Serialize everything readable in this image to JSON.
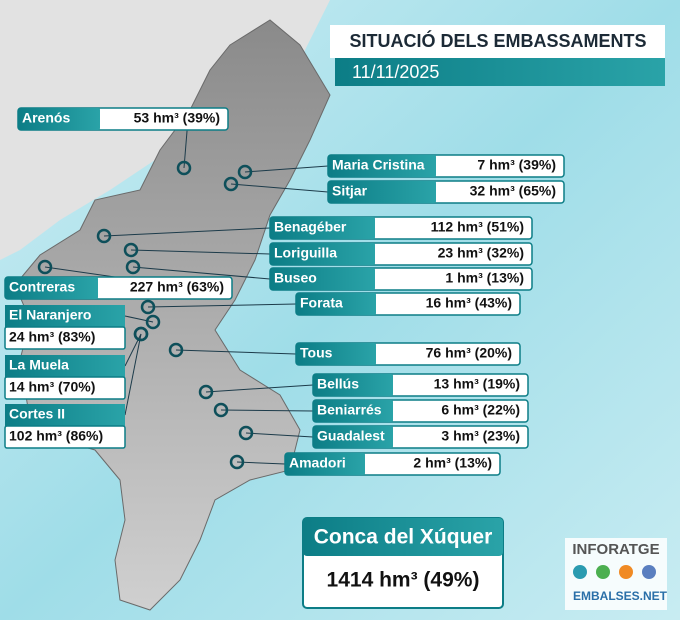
{
  "header": {
    "title": "SITUACIÓ DELS EMBASSAMENTS",
    "date": "11/11/2025"
  },
  "reservoirs": [
    {
      "name": "Arenós",
      "value": "53 hm³ (39%)"
    },
    {
      "name": "Maria Cristina",
      "value": "7 hm³ (39%)"
    },
    {
      "name": "Sitjar",
      "value": "32 hm³ (65%)"
    },
    {
      "name": "Benagéber",
      "value": "112 hm³ (51%)"
    },
    {
      "name": "Loriguilla",
      "value": "23 hm³ (32%)"
    },
    {
      "name": "Buseo",
      "value": "1 hm³ (13%)"
    },
    {
      "name": "Contreras",
      "value": "227 hm³ (63%)"
    },
    {
      "name": "Forata",
      "value": "16 hm³ (43%)"
    },
    {
      "name": "El Naranjero",
      "value": "24 hm³ (83%)"
    },
    {
      "name": "La Muela",
      "value": "14 hm³ (70%)"
    },
    {
      "name": "Cortes II",
      "value": "102 hm³ (86%)"
    },
    {
      "name": "Tous",
      "value": "76 hm³ (20%)"
    },
    {
      "name": "Bellús",
      "value": "13 hm³ (19%)"
    },
    {
      "name": "Beniarrés",
      "value": "6 hm³ (22%)"
    },
    {
      "name": "Guadalest",
      "value": "3 hm³ (23%)"
    },
    {
      "name": "Amadori",
      "value": "2 hm³ (13%)"
    }
  ],
  "total": {
    "name": "Conca del Xúquer",
    "value": "1414 hm³ (49%)"
  },
  "logo": {
    "brand": "INFORATGE",
    "site": "EMBALSES.NET"
  }
}
